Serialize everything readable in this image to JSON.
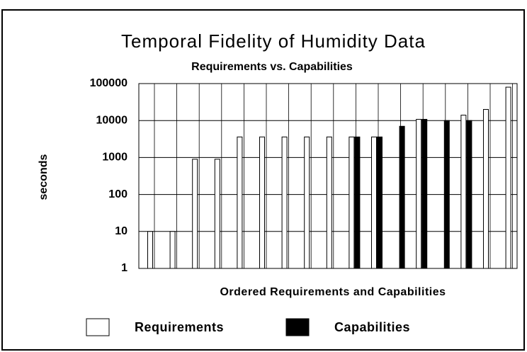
{
  "chart_data": {
    "type": "bar",
    "title": "Temporal  Fidelity of Humidity Data",
    "subtitle": "Requirements vs. Capabilities",
    "x_label": "Ordered Requirements and Capabilities",
    "y_label": "seconds",
    "categories": [
      null,
      null,
      null,
      null,
      null,
      null,
      null,
      null,
      null,
      null,
      null,
      null,
      null,
      null,
      null,
      null,
      null
    ],
    "series": [
      {
        "name": "Requirements",
        "color": "#ffffff",
        "values": [
          10,
          10,
          900,
          900,
          3600,
          3600,
          3600,
          3600,
          3600,
          3600,
          3600,
          null,
          10800,
          null,
          14000,
          20000,
          80000
        ]
      },
      {
        "name": "Capabilities",
        "color": "#000000",
        "values": [
          null,
          null,
          null,
          null,
          null,
          null,
          null,
          null,
          null,
          3600,
          3600,
          7000,
          10800,
          10000,
          10000,
          null,
          null
        ]
      }
    ],
    "ylim": [
      1,
      100000
    ],
    "yticks": [
      1,
      10,
      100,
      1000,
      10000,
      100000
    ],
    "log_scale": true,
    "grid": true,
    "legend": "bottom"
  }
}
